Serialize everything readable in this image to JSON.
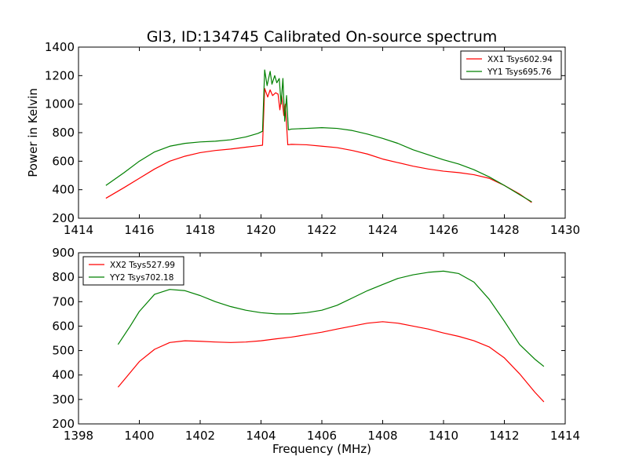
{
  "figure": {
    "title": "Gl3, ID:134745 Calibrated On-source spectrum",
    "background": "#ffffff"
  },
  "chart_data": [
    {
      "type": "line",
      "ylabel": "Power in Kelvin",
      "xlabel": "",
      "xlim": [
        1414,
        1430
      ],
      "ylim": [
        200,
        1400
      ],
      "xticks": [
        1414,
        1416,
        1418,
        1420,
        1422,
        1424,
        1426,
        1428,
        1430
      ],
      "yticks": [
        200,
        400,
        600,
        800,
        1000,
        1200,
        1400
      ],
      "grid": false,
      "legend": "top-right",
      "series": [
        {
          "name": "XX1 Tsys602.94",
          "color": "#ff0000",
          "points": [
            [
              1414.9,
              340
            ],
            [
              1415.5,
              415
            ],
            [
              1416.0,
              480
            ],
            [
              1416.5,
              545
            ],
            [
              1417.0,
              600
            ],
            [
              1417.5,
              635
            ],
            [
              1418.0,
              660
            ],
            [
              1418.5,
              675
            ],
            [
              1419.0,
              685
            ],
            [
              1419.5,
              698
            ],
            [
              1419.9,
              708
            ],
            [
              1420.05,
              712
            ],
            [
              1420.12,
              1110
            ],
            [
              1420.22,
              1050
            ],
            [
              1420.3,
              1100
            ],
            [
              1420.38,
              1060
            ],
            [
              1420.48,
              1080
            ],
            [
              1420.56,
              1070
            ],
            [
              1420.62,
              960
            ],
            [
              1420.68,
              1060
            ],
            [
              1420.75,
              920
            ],
            [
              1420.8,
              1000
            ],
            [
              1420.88,
              715
            ],
            [
              1421.0,
              718
            ],
            [
              1421.5,
              715
            ],
            [
              1422.0,
              705
            ],
            [
              1422.5,
              695
            ],
            [
              1423.0,
              675
            ],
            [
              1423.5,
              650
            ],
            [
              1424.0,
              615
            ],
            [
              1424.5,
              590
            ],
            [
              1425.0,
              565
            ],
            [
              1425.5,
              545
            ],
            [
              1426.0,
              530
            ],
            [
              1426.5,
              520
            ],
            [
              1427.0,
              505
            ],
            [
              1427.5,
              480
            ],
            [
              1428.0,
              430
            ],
            [
              1428.5,
              370
            ],
            [
              1428.9,
              310
            ]
          ]
        },
        {
          "name": "YY1 Tsys695.76",
          "color": "#008000",
          "points": [
            [
              1414.9,
              430
            ],
            [
              1415.5,
              520
            ],
            [
              1416.0,
              600
            ],
            [
              1416.5,
              665
            ],
            [
              1417.0,
              705
            ],
            [
              1417.5,
              725
            ],
            [
              1418.0,
              735
            ],
            [
              1418.5,
              740
            ],
            [
              1419.0,
              750
            ],
            [
              1419.5,
              770
            ],
            [
              1419.9,
              795
            ],
            [
              1420.05,
              810
            ],
            [
              1420.12,
              1240
            ],
            [
              1420.2,
              1130
            ],
            [
              1420.3,
              1230
            ],
            [
              1420.36,
              1140
            ],
            [
              1420.45,
              1200
            ],
            [
              1420.52,
              1150
            ],
            [
              1420.6,
              1180
            ],
            [
              1420.66,
              1000
            ],
            [
              1420.72,
              1180
            ],
            [
              1420.78,
              880
            ],
            [
              1420.84,
              1060
            ],
            [
              1420.9,
              820
            ],
            [
              1421.0,
              825
            ],
            [
              1421.5,
              830
            ],
            [
              1422.0,
              835
            ],
            [
              1422.5,
              830
            ],
            [
              1423.0,
              815
            ],
            [
              1423.5,
              790
            ],
            [
              1424.0,
              760
            ],
            [
              1424.5,
              725
            ],
            [
              1425.0,
              680
            ],
            [
              1425.5,
              645
            ],
            [
              1426.0,
              610
            ],
            [
              1426.5,
              580
            ],
            [
              1427.0,
              540
            ],
            [
              1427.5,
              490
            ],
            [
              1428.0,
              430
            ],
            [
              1428.5,
              365
            ],
            [
              1428.9,
              315
            ]
          ]
        }
      ]
    },
    {
      "type": "line",
      "ylabel": "",
      "xlabel": "Frequency (MHz)",
      "xlim": [
        1398,
        1414
      ],
      "ylim": [
        200,
        900
      ],
      "xticks": [
        1398,
        1400,
        1402,
        1404,
        1406,
        1408,
        1410,
        1412,
        1414
      ],
      "yticks": [
        200,
        300,
        400,
        500,
        600,
        700,
        800,
        900
      ],
      "grid": false,
      "legend": "top-left",
      "series": [
        {
          "name": "XX2 Tsys527.99",
          "color": "#ff0000",
          "points": [
            [
              1399.3,
              350
            ],
            [
              1399.7,
              410
            ],
            [
              1400.0,
              455
            ],
            [
              1400.5,
              505
            ],
            [
              1401.0,
              533
            ],
            [
              1401.5,
              540
            ],
            [
              1402.0,
              538
            ],
            [
              1402.5,
              535
            ],
            [
              1403.0,
              533
            ],
            [
              1403.5,
              535
            ],
            [
              1404.0,
              540
            ],
            [
              1404.5,
              548
            ],
            [
              1405.0,
              555
            ],
            [
              1405.5,
              565
            ],
            [
              1406.0,
              575
            ],
            [
              1406.5,
              588
            ],
            [
              1407.0,
              600
            ],
            [
              1407.5,
              612
            ],
            [
              1408.0,
              618
            ],
            [
              1408.5,
              612
            ],
            [
              1409.0,
              600
            ],
            [
              1409.5,
              588
            ],
            [
              1410.0,
              572
            ],
            [
              1410.5,
              558
            ],
            [
              1411.0,
              540
            ],
            [
              1411.5,
              515
            ],
            [
              1412.0,
              470
            ],
            [
              1412.5,
              405
            ],
            [
              1413.0,
              330
            ],
            [
              1413.3,
              290
            ]
          ]
        },
        {
          "name": "YY2 Tsys702.18",
          "color": "#008000",
          "points": [
            [
              1399.3,
              525
            ],
            [
              1399.7,
              600
            ],
            [
              1400.0,
              660
            ],
            [
              1400.5,
              730
            ],
            [
              1401.0,
              750
            ],
            [
              1401.5,
              745
            ],
            [
              1402.0,
              725
            ],
            [
              1402.5,
              700
            ],
            [
              1403.0,
              680
            ],
            [
              1403.5,
              665
            ],
            [
              1404.0,
              655
            ],
            [
              1404.5,
              650
            ],
            [
              1405.0,
              650
            ],
            [
              1405.5,
              655
            ],
            [
              1406.0,
              665
            ],
            [
              1406.5,
              685
            ],
            [
              1407.0,
              715
            ],
            [
              1407.5,
              745
            ],
            [
              1408.0,
              770
            ],
            [
              1408.5,
              795
            ],
            [
              1409.0,
              810
            ],
            [
              1409.5,
              820
            ],
            [
              1410.0,
              825
            ],
            [
              1410.5,
              815
            ],
            [
              1411.0,
              780
            ],
            [
              1411.5,
              710
            ],
            [
              1412.0,
              620
            ],
            [
              1412.5,
              525
            ],
            [
              1413.0,
              465
            ],
            [
              1413.3,
              435
            ]
          ]
        }
      ]
    }
  ]
}
